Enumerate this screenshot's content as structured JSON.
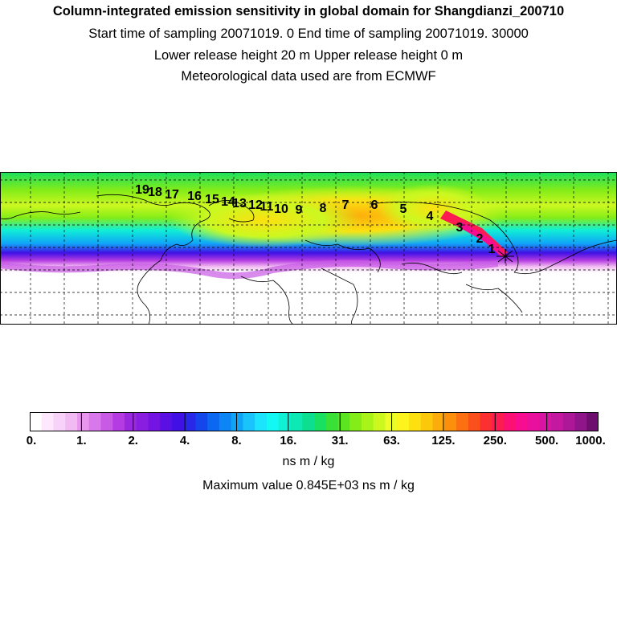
{
  "header": {
    "title": "Column-integrated emission sensitivity in global domain for Shangdianzi_200710",
    "sampling": "Start time of sampling 20071019.     0     End time of sampling 20071019. 30000",
    "release": "Lower release height   20 m          Upper release height    0 m",
    "met": "Meteorological data used are from ECMWF"
  },
  "map": {
    "trajectory_labels": [
      "1",
      "2",
      "3",
      "4",
      "5",
      "6",
      "7",
      "8",
      "9",
      "10",
      "11",
      "12",
      "13",
      "14",
      "15",
      "16",
      "17",
      "18",
      "19"
    ]
  },
  "colorbar": {
    "tick_labels": [
      "0.",
      "1.",
      "2.",
      "4.",
      "8.",
      "16.",
      "31.",
      "63.",
      "125.",
      "250.",
      "500.",
      "1000."
    ],
    "colors": [
      "#ffffff",
      "#fde8fd",
      "#f8d2f8",
      "#f2baf2",
      "#e896ee",
      "#d878ea",
      "#c85ae6",
      "#b43ce2",
      "#9a28de",
      "#8a1ee0",
      "#7414e2",
      "#5a10e2",
      "#4010e4",
      "#2828e8",
      "#1446ec",
      "#0c68f0",
      "#0c86f4",
      "#10a4f8",
      "#18c4fa",
      "#1ce4fc",
      "#14f8f4",
      "#10f0d4",
      "#0ee8b4",
      "#0ce090",
      "#18e060",
      "#38e038",
      "#5ce420",
      "#84ec18",
      "#a8f418",
      "#ccf820",
      "#ecfc28",
      "#fcf41c",
      "#fce010",
      "#fcc80c",
      "#fcac0c",
      "#fc900c",
      "#fc7012",
      "#fc501c",
      "#fc3030",
      "#fc1c52",
      "#fc1074",
      "#f80c90",
      "#e8109c",
      "#d814a2",
      "#c418a0",
      "#ac1898",
      "#90148a",
      "#6e0e6e"
    ],
    "units": "ns m / kg",
    "maximum": "Maximum value  0.845E+03 ns m / kg"
  }
}
